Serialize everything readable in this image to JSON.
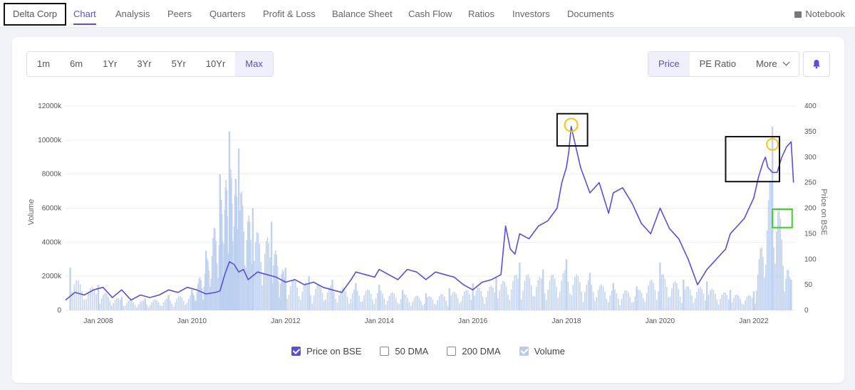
{
  "nav": {
    "company": "Delta Corp",
    "tabs": [
      "Chart",
      "Analysis",
      "Peers",
      "Quarters",
      "Profit & Loss",
      "Balance Sheet",
      "Cash Flow",
      "Ratios",
      "Investors",
      "Documents"
    ],
    "active": "Chart",
    "notebook": "Notebook"
  },
  "ranges": [
    "1m",
    "6m",
    "1Yr",
    "3Yr",
    "5Yr",
    "10Yr",
    "Max"
  ],
  "selected_range": "Max",
  "metrics": [
    "Price",
    "PE Ratio",
    "More"
  ],
  "selected_metric": "Price",
  "legend": [
    "Price on BSE",
    "50 DMA",
    "200 DMA",
    "Volume"
  ],
  "legend_checked": [
    true,
    false,
    false,
    true
  ],
  "colors": {
    "accent": "#5b4fd6",
    "price": "#5b4fd6",
    "volume": "#b9cdef",
    "highlight_box": "#111111",
    "peak_circle": "#f2c514",
    "low_box": "#3fcf2c"
  },
  "chart_data": {
    "type": "line",
    "x_ticks": [
      "Jan 2008",
      "Jan 2010",
      "Jan 2012",
      "Jan 2014",
      "Jan 2016",
      "Jan 2018",
      "Jan 2020",
      "Jan 2022"
    ],
    "y_left": {
      "label": "Volume",
      "ticks": [
        "0",
        "2000k",
        "4000k",
        "6000k",
        "8000k",
        "10000k",
        "12000k"
      ],
      "range": [
        0,
        12000
      ]
    },
    "y_right": {
      "label": "Price on BSE",
      "ticks": [
        "0",
        "50",
        "100",
        "150",
        "200",
        "250",
        "300",
        "350",
        "400"
      ],
      "range": [
        0,
        400
      ]
    },
    "xlim": [
      2007.3,
      2022.9
    ],
    "series": [
      {
        "name": "Price on BSE",
        "axis": "right",
        "x": [
          2007.3,
          2007.5,
          2007.7,
          2007.9,
          2008.1,
          2008.3,
          2008.5,
          2008.7,
          2008.9,
          2009.1,
          2009.3,
          2009.5,
          2009.7,
          2009.9,
          2010.1,
          2010.3,
          2010.5,
          2010.6,
          2010.7,
          2010.8,
          2010.9,
          2011.0,
          2011.1,
          2011.2,
          2011.4,
          2011.6,
          2011.8,
          2012.0,
          2012.2,
          2012.4,
          2012.6,
          2012.8,
          2013.0,
          2013.2,
          2013.4,
          2013.5,
          2013.7,
          2013.9,
          2014.0,
          2014.2,
          2014.4,
          2014.6,
          2014.8,
          2015.0,
          2015.2,
          2015.4,
          2015.6,
          2015.8,
          2016.0,
          2016.2,
          2016.4,
          2016.6,
          2016.7,
          2016.8,
          2016.9,
          2017.0,
          2017.2,
          2017.4,
          2017.6,
          2017.8,
          2017.9,
          2018.0,
          2018.05,
          2018.1,
          2018.15,
          2018.3,
          2018.5,
          2018.7,
          2018.9,
          2019.0,
          2019.2,
          2019.4,
          2019.6,
          2019.8,
          2019.9,
          2020.0,
          2020.1,
          2020.2,
          2020.4,
          2020.6,
          2020.8,
          2021.0,
          2021.2,
          2021.4,
          2021.5,
          2021.6,
          2021.7,
          2021.8,
          2021.9,
          2022.0,
          2022.1,
          2022.2,
          2022.25,
          2022.3,
          2022.4,
          2022.5,
          2022.6,
          2022.7,
          2022.8,
          2022.85
        ],
        "y": [
          20,
          35,
          30,
          40,
          45,
          25,
          40,
          20,
          30,
          25,
          30,
          40,
          35,
          45,
          40,
          32,
          35,
          38,
          70,
          95,
          90,
          75,
          80,
          60,
          75,
          70,
          65,
          55,
          60,
          50,
          55,
          45,
          40,
          35,
          60,
          75,
          70,
          65,
          80,
          70,
          60,
          80,
          75,
          60,
          75,
          70,
          65,
          50,
          40,
          55,
          60,
          70,
          165,
          120,
          110,
          150,
          140,
          165,
          175,
          200,
          250,
          280,
          310,
          360,
          340,
          280,
          230,
          250,
          190,
          230,
          240,
          210,
          170,
          150,
          175,
          200,
          180,
          160,
          140,
          100,
          50,
          80,
          100,
          120,
          150,
          160,
          170,
          180,
          200,
          220,
          260,
          290,
          300,
          280,
          270,
          270,
          300,
          320,
          330,
          250
        ],
        "note": ""
      },
      {
        "name": "Volume",
        "axis": "left",
        "x": [
          2007.4,
          2008.0,
          2008.5,
          2009.0,
          2009.5,
          2010.0,
          2010.3,
          2010.6,
          2010.8,
          2011.0,
          2011.3,
          2011.7,
          2012.0,
          2012.5,
          2013.0,
          2013.5,
          2014.0,
          2014.5,
          2015.0,
          2015.5,
          2016.0,
          2016.5,
          2017.0,
          2017.5,
          2018.0,
          2018.5,
          2019.0,
          2019.5,
          2020.0,
          2020.5,
          2021.0,
          2021.5,
          2022.0,
          2022.4,
          2022.8
        ],
        "y": [
          2500,
          1500,
          800,
          700,
          900,
          1200,
          3500,
          8000,
          10500,
          9500,
          6000,
          5200,
          2500,
          2000,
          1800,
          1600,
          1500,
          1200,
          1000,
          1300,
          1600,
          1900,
          2800,
          2400,
          3000,
          2200,
          1600,
          1400,
          2800,
          1800,
          1700,
          1200,
          1100,
          10800,
          1800
        ]
      }
    ],
    "annotations": [
      "peak 2018 box",
      "peak 2022 box",
      "2022 low box"
    ]
  }
}
